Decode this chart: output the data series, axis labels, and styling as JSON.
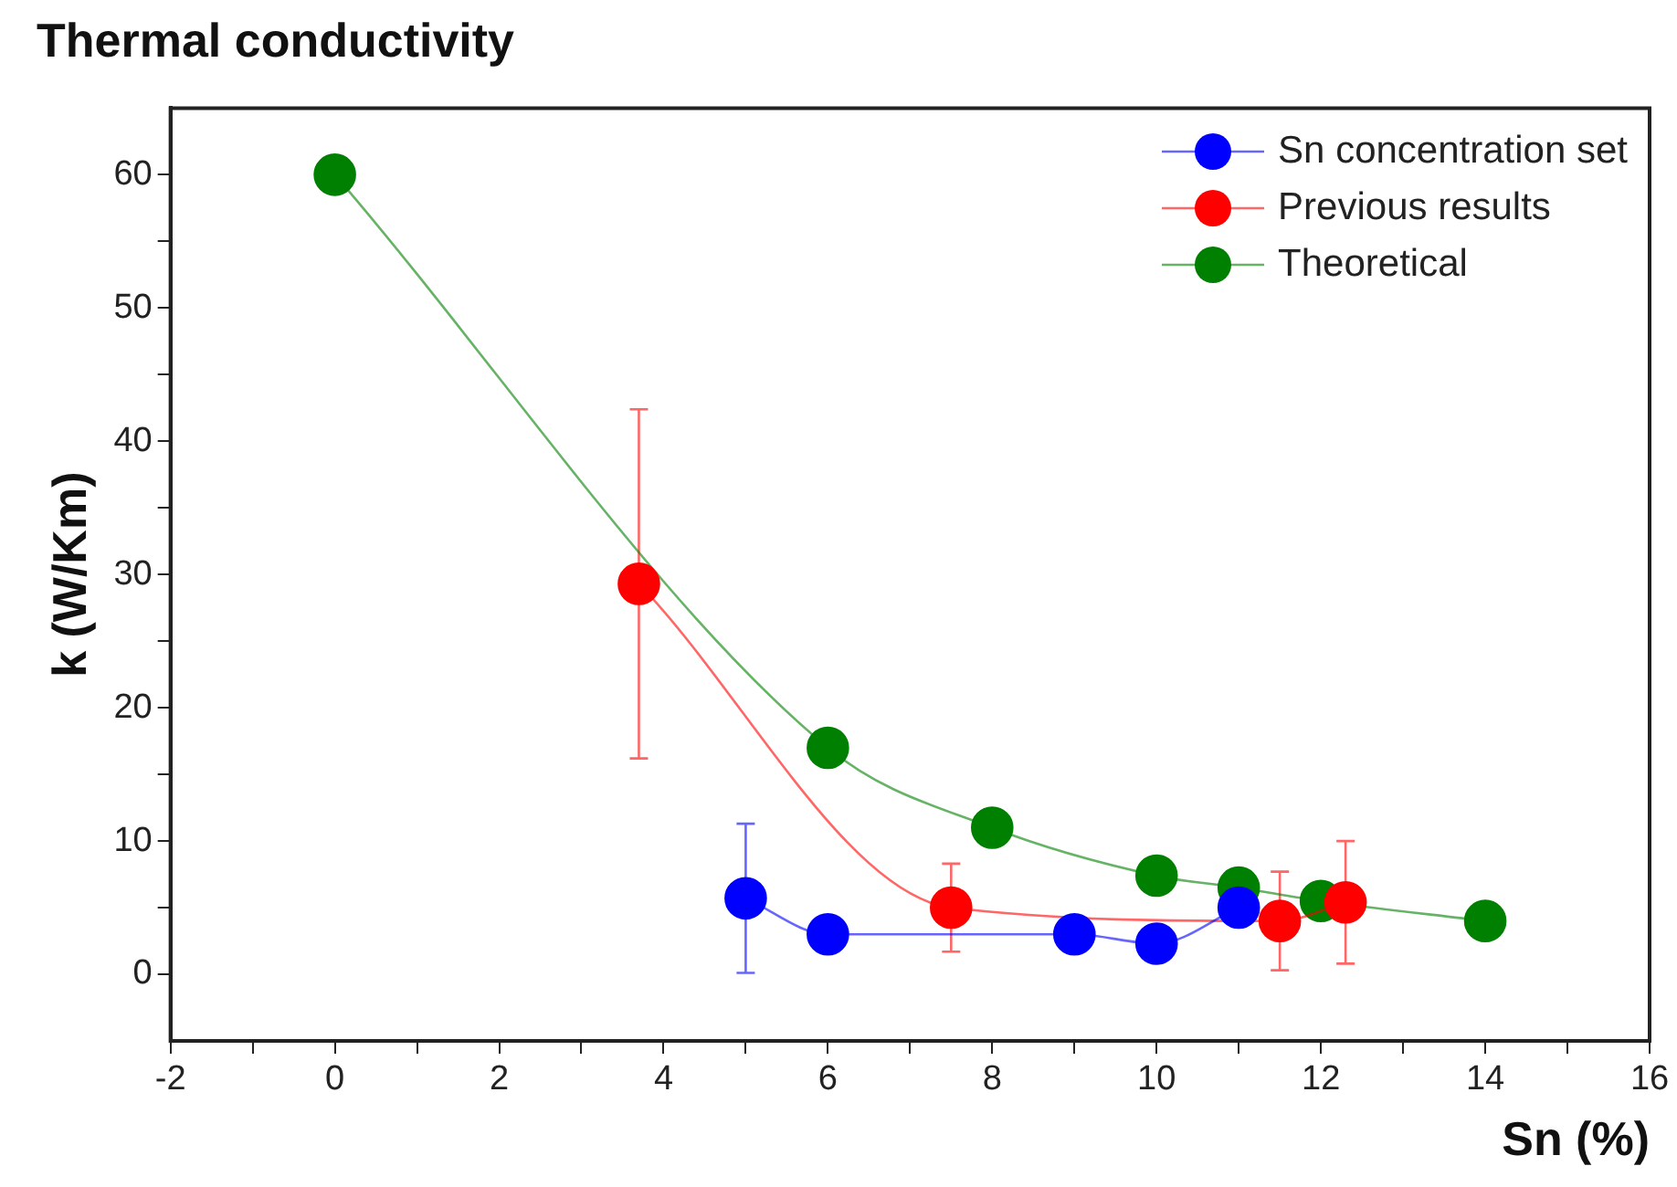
{
  "chart_data": {
    "type": "line",
    "title": "Thermal conductivity",
    "xlabel": "Sn (%)",
    "ylabel": "k (W/Km)",
    "xlim": [
      -2,
      16
    ],
    "ylim": [
      -5,
      65
    ],
    "xticks": [
      -2,
      {
        "value": -1,
        "label": null
      },
      0,
      {
        "value": 1,
        "label": null
      },
      2,
      {
        "value": 3,
        "label": null
      },
      4,
      {
        "value": 5,
        "label": null
      },
      6,
      {
        "value": 7,
        "label": null
      },
      8,
      {
        "value": 9,
        "label": null
      },
      10,
      {
        "value": 11,
        "label": null
      },
      12,
      {
        "value": 13,
        "label": null
      },
      14,
      {
        "value": 15,
        "label": null
      },
      16
    ],
    "yticks": [
      0,
      {
        "value": 5,
        "label": null
      },
      10,
      {
        "value": 15,
        "label": null
      },
      20,
      {
        "value": 25,
        "label": null
      },
      30,
      {
        "value": 35,
        "label": null
      },
      40,
      {
        "value": 45,
        "label": null
      },
      50,
      {
        "value": 55,
        "label": null
      },
      60
    ],
    "grid": false,
    "legend": "top right",
    "marker": "circle",
    "line_style": "solid",
    "series": [
      {
        "name": "Sn concentration set",
        "color": "#0000ff",
        "x": [
          5,
          6,
          9,
          10,
          11
        ],
        "values": [
          5.7,
          3.0,
          3.0,
          2.3,
          5.0
        ],
        "errors": [
          5.6,
          null,
          null,
          null,
          null
        ]
      },
      {
        "name": "Previous results",
        "color": "#ff0000",
        "x": [
          3.7,
          7.5,
          11.5,
          12.3
        ],
        "values": [
          29.3,
          5.0,
          4.0,
          5.4
        ],
        "errors": [
          13.1,
          3.3,
          3.7,
          4.6
        ]
      },
      {
        "name": "Theoretical",
        "color": "#008000",
        "x": [
          0,
          6,
          8,
          10,
          11,
          12,
          14
        ],
        "values": [
          60,
          17,
          11,
          7.4,
          6.5,
          5.5,
          4.0
        ]
      }
    ]
  }
}
